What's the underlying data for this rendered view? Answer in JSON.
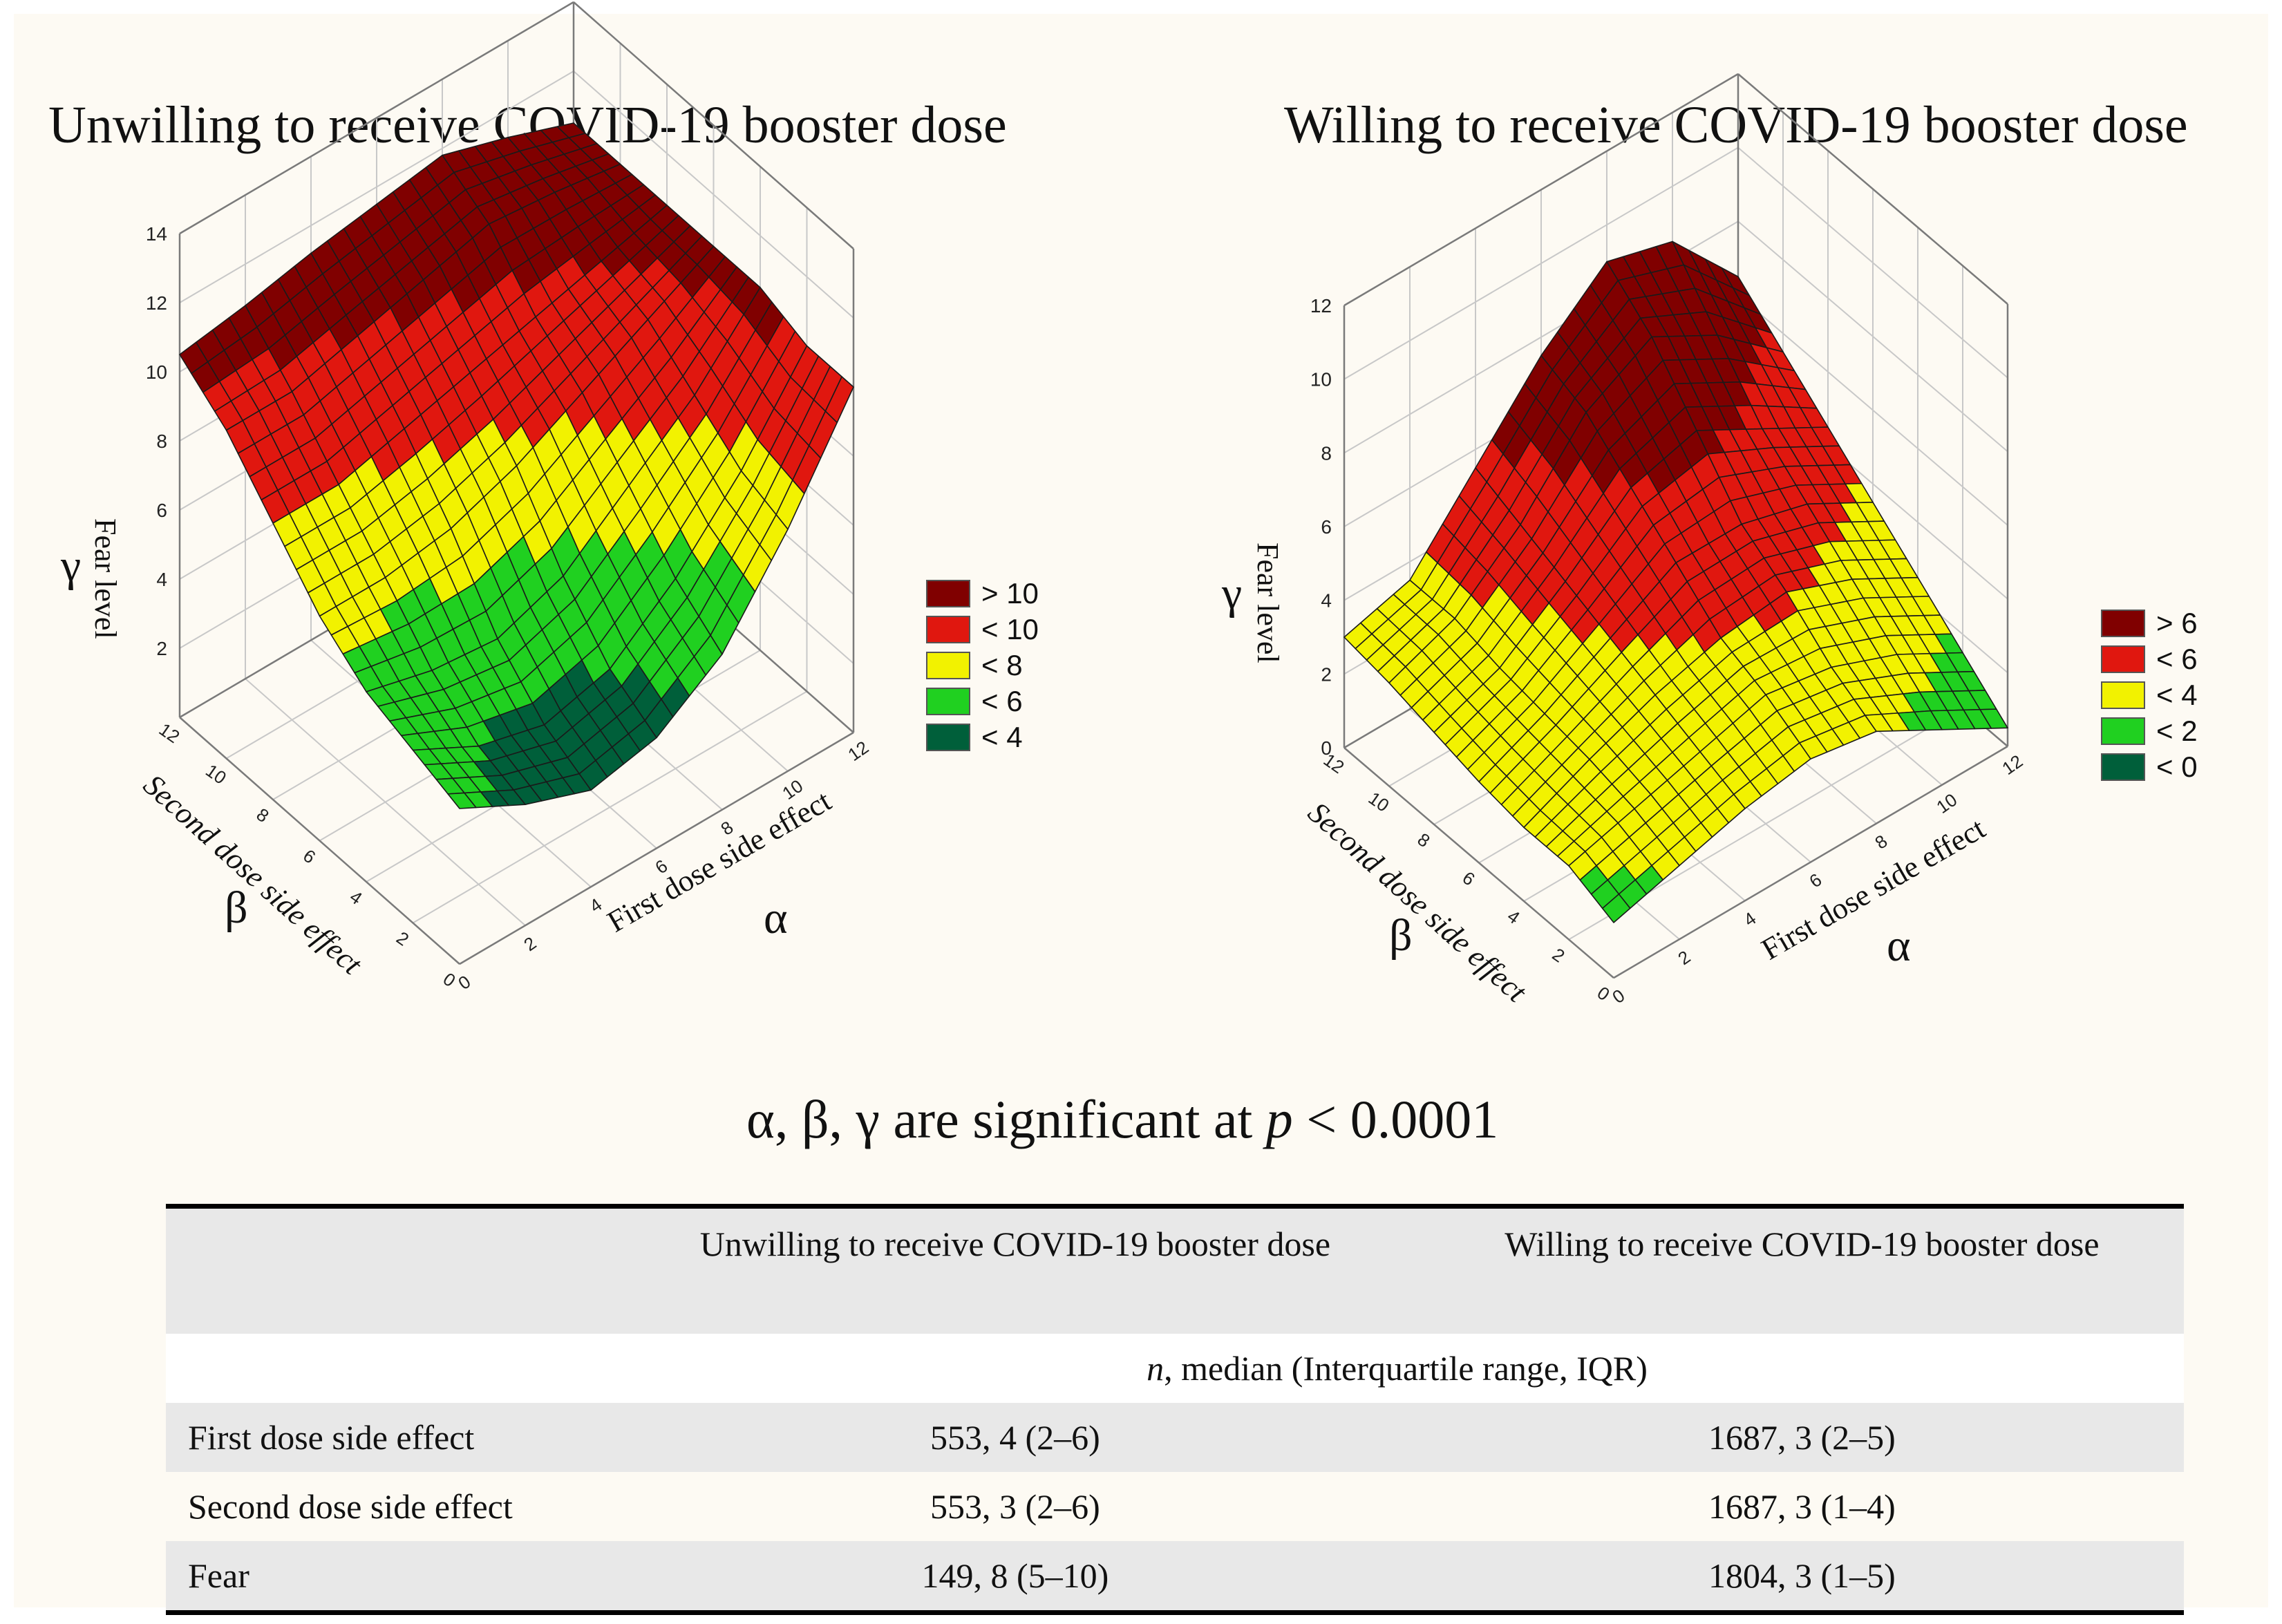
{
  "chart_data": [
    {
      "type": "surface3d",
      "title": "Unwilling to receive COVID-19 booster dose",
      "xlabel": "First dose side effect",
      "x_symbol": "α",
      "ylabel": "Second dose side effect",
      "y_symbol": "β",
      "zlabel": "Fear level",
      "z_symbol": "γ",
      "xlim": [
        0,
        12
      ],
      "ylim": [
        0,
        12
      ],
      "zlim": [
        0,
        14
      ],
      "x_ticks": [
        "0",
        "2",
        "4",
        "6",
        "8",
        "10",
        "12"
      ],
      "y_ticks": [
        "0",
        "2",
        "4",
        "6",
        "8",
        "10",
        "12"
      ],
      "z_ticks": [
        "2",
        "4",
        "6",
        "8",
        "10",
        "12",
        "14"
      ],
      "grid": true,
      "legend_position": "right",
      "legend": [
        {
          "label": "> 10",
          "color": "#800000"
        },
        {
          "label": "< 10",
          "color": "#e0170f"
        },
        {
          "label": "< 8",
          "color": "#f2f200"
        },
        {
          "label": "< 6",
          "color": "#20d020"
        },
        {
          "label": "< 4",
          "color": "#005f3a"
        }
      ],
      "grid_x": [
        0,
        2,
        4,
        6,
        8,
        10,
        12
      ],
      "grid_y": [
        0,
        2,
        4,
        6,
        8,
        10,
        12
      ],
      "z": [
        [
          4.5,
          3.5,
          2.8,
          3.2,
          4.5,
          7.0,
          10.0
        ],
        [
          5.0,
          4.0,
          3.5,
          4.0,
          5.5,
          7.5,
          10.0
        ],
        [
          5.5,
          5.0,
          4.8,
          5.5,
          7.0,
          8.5,
          10.5
        ],
        [
          6.5,
          6.5,
          6.8,
          7.5,
          8.5,
          9.5,
          10.5
        ],
        [
          8.0,
          8.0,
          8.5,
          9.0,
          9.5,
          10.0,
          10.5
        ],
        [
          9.5,
          9.5,
          10.0,
          10.5,
          11.0,
          10.8,
          10.5
        ],
        [
          10.5,
          10.8,
          11.2,
          11.5,
          11.8,
          11.2,
          10.5
        ]
      ]
    },
    {
      "type": "surface3d",
      "title": "Willing to receive COVID-19 booster dose",
      "xlabel": "First dose side effect",
      "x_symbol": "α",
      "ylabel": "Second dose side effect",
      "y_symbol": "β",
      "zlabel": "Fear level",
      "z_symbol": "γ",
      "xlim": [
        0,
        12
      ],
      "ylim": [
        0,
        12
      ],
      "zlim": [
        0,
        12
      ],
      "x_ticks": [
        "0",
        "2",
        "4",
        "6",
        "8",
        "10",
        "12"
      ],
      "y_ticks": [
        "0",
        "2",
        "4",
        "6",
        "8",
        "10",
        "12"
      ],
      "z_ticks": [
        "0",
        "2",
        "4",
        "6",
        "8",
        "10",
        "12"
      ],
      "grid": true,
      "legend_position": "right",
      "legend": [
        {
          "label": "> 6",
          "color": "#800000"
        },
        {
          "label": "< 6",
          "color": "#e0170f"
        },
        {
          "label": "< 4",
          "color": "#f2f200"
        },
        {
          "label": "< 2",
          "color": "#20d020"
        },
        {
          "label": "< 0",
          "color": "#005f3a"
        }
      ],
      "grid_x": [
        0,
        2,
        4,
        6,
        8,
        10,
        12
      ],
      "grid_y": [
        0,
        2,
        4,
        6,
        8,
        10,
        12
      ],
      "z": [
        [
          1.5,
          2.0,
          2.5,
          2.8,
          2.5,
          1.5,
          0.5
        ],
        [
          2.0,
          2.5,
          3.0,
          3.5,
          3.2,
          2.5,
          1.5
        ],
        [
          2.0,
          2.8,
          3.5,
          4.0,
          4.2,
          3.5,
          2.5
        ],
        [
          2.2,
          3.0,
          4.0,
          5.0,
          5.0,
          4.5,
          3.5
        ],
        [
          2.5,
          3.2,
          4.5,
          6.0,
          6.5,
          5.5,
          4.5
        ],
        [
          2.8,
          3.5,
          5.0,
          7.0,
          8.0,
          7.0,
          5.5
        ],
        [
          3.0,
          3.5,
          5.5,
          7.5,
          9.0,
          8.5,
          6.5
        ]
      ]
    }
  ],
  "significance_note": {
    "symbols": "α, β, γ are significant at ",
    "p": "p",
    "rest": " < 0.0001"
  },
  "table": {
    "headers": [
      "",
      "Unwilling to receive COVID-19 booster dose",
      "Willing to receive COVID-19 booster dose"
    ],
    "subheader_n": "n",
    "subheader_rest": ", median (Interquartile range, IQR)",
    "rows": [
      {
        "label": "First dose side effect",
        "unwilling": "553, 4 (2–6)",
        "willing": "1687, 3 (2–5)"
      },
      {
        "label": "Second dose side effect",
        "unwilling": "553, 3 (2–6)",
        "willing": "1687, 3 (1–4)"
      },
      {
        "label": "Fear",
        "unwilling": "149, 8 (5–10)",
        "willing": "1804, 3 (1–5)"
      }
    ]
  }
}
